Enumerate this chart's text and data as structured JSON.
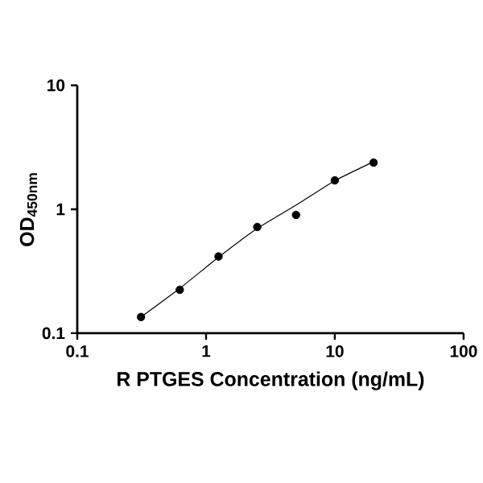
{
  "chart_data": {
    "type": "scatter",
    "xlabel": "R PTGES Concentration (ng/mL)",
    "ylabel": "OD$_{450nm}$",
    "log": "xy",
    "xlim": [
      0.1,
      100
    ],
    "ylim": [
      0.1,
      10
    ],
    "xticks": [
      0.1,
      1,
      10,
      100
    ],
    "yticks": [
      0.1,
      1,
      10
    ],
    "grid": false,
    "series": [
      {
        "color": "#000000",
        "marker": "circle",
        "x": [
          0.3125,
          0.625,
          1.25,
          2.5,
          5,
          10,
          20
        ],
        "values": [
          0.135,
          0.224,
          0.416,
          0.72,
          0.9,
          1.71,
          2.38
        ]
      },
      {
        "type": "line",
        "color": "#000000",
        "marker": "none",
        "x": [
          0.3125,
          0.625,
          1.25,
          2.5,
          5,
          10,
          20
        ],
        "values": [
          0.135,
          0.23,
          0.41,
          0.7,
          1.08,
          1.7,
          2.42
        ]
      }
    ]
  }
}
